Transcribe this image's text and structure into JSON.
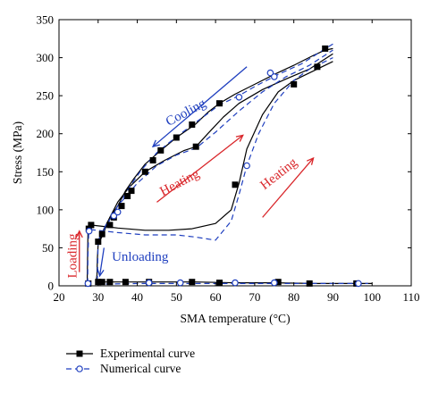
{
  "chart_data": {
    "type": "line",
    "title": "",
    "xlabel": "SMA temperature (°C)",
    "ylabel": "Stress (MPa)",
    "xlim": [
      20,
      110
    ],
    "ylim": [
      0,
      350
    ],
    "xticks": [
      20,
      30,
      40,
      50,
      60,
      70,
      80,
      90,
      100,
      110
    ],
    "yticks": [
      0,
      50,
      100,
      150,
      200,
      250,
      300,
      350
    ],
    "grid": false,
    "legend_position": "bottom-left, below plot",
    "series": [
      {
        "name": "Experimental curve",
        "color": "#000000",
        "line_style": "solid",
        "marker": "filled-square",
        "segments": [
          {
            "phase": "loading",
            "points": [
              [
                27.2,
                3
              ],
              [
                27.3,
                40
              ],
              [
                27.4,
                70
              ],
              [
                27.6,
                80
              ],
              [
                28,
                80
              ]
            ]
          },
          {
            "phase": "heating",
            "points": [
              [
                28,
                80
              ],
              [
                35,
                76
              ],
              [
                42,
                73
              ],
              [
                48,
                73
              ],
              [
                54,
                75
              ],
              [
                60,
                82
              ],
              [
                64,
                100
              ],
              [
                66,
                135
              ],
              [
                68,
                180
              ],
              [
                72,
                225
              ],
              [
                76,
                255
              ],
              [
                80,
                270
              ],
              [
                84,
                280
              ],
              [
                88,
                290
              ],
              [
                90,
                295
              ]
            ]
          },
          {
            "phase": "cooling",
            "points": [
              [
                90,
                312
              ],
              [
                88,
                310
              ],
              [
                85,
                303
              ],
              [
                80,
                290
              ],
              [
                75,
                278
              ],
              [
                70,
                265
              ],
              [
                65,
                252
              ],
              [
                61,
                240
              ],
              [
                58,
                228
              ],
              [
                55,
                213
              ],
              [
                50,
                195
              ],
              [
                46,
                178
              ],
              [
                42,
                160
              ],
              [
                39,
                140
              ],
              [
                37,
                125
              ],
              [
                35,
                105
              ],
              [
                33,
                90
              ],
              [
                31.5,
                75
              ],
              [
                30.5,
                62
              ],
              [
                30,
                55
              ]
            ]
          },
          {
            "phase": "heating",
            "points": [
              [
                30,
                55
              ],
              [
                31,
                65
              ],
              [
                33,
                90
              ],
              [
                35,
                110
              ],
              [
                38,
                130
              ],
              [
                42,
                150
              ],
              [
                47,
                165
              ],
              [
                52,
                178
              ],
              [
                55,
                183
              ],
              [
                58,
                200
              ],
              [
                62,
                222
              ],
              [
                66,
                240
              ],
              [
                72,
                258
              ],
              [
                78,
                272
              ],
              [
                84,
                285
              ],
              [
                90,
                305
              ]
            ]
          },
          {
            "phase": "unloading",
            "points": [
              [
                30,
                55
              ],
              [
                29.8,
                35
              ],
              [
                29.7,
                15
              ],
              [
                29.5,
                5
              ]
            ]
          },
          {
            "phase": "cooling",
            "points": [
              [
                29.5,
                5
              ],
              [
                35,
                5
              ],
              [
                45,
                5
              ],
              [
                55,
                5
              ],
              [
                65,
                4
              ],
              [
                75,
                4
              ],
              [
                85,
                3
              ],
              [
                95,
                3
              ],
              [
                100,
                3
              ]
            ]
          }
        ],
        "markers": [
          [
            27.5,
            3
          ],
          [
            27.6,
            75
          ],
          [
            28.2,
            80
          ],
          [
            30,
            58
          ],
          [
            31,
            68
          ],
          [
            33,
            80
          ],
          [
            34,
            90
          ],
          [
            36,
            105
          ],
          [
            37.5,
            118
          ],
          [
            38.5,
            125
          ],
          [
            42,
            150
          ],
          [
            44,
            165
          ],
          [
            46,
            178
          ],
          [
            50,
            195
          ],
          [
            54,
            212
          ],
          [
            61,
            240
          ],
          [
            55,
            183
          ],
          [
            65,
            133
          ],
          [
            80,
            265
          ],
          [
            86,
            288
          ],
          [
            88,
            312
          ],
          [
            30,
            5
          ],
          [
            31,
            5
          ],
          [
            33,
            5
          ],
          [
            37,
            5
          ],
          [
            43,
            5
          ],
          [
            54,
            5
          ],
          [
            61,
            4
          ],
          [
            76,
            5
          ],
          [
            84,
            3
          ],
          [
            96,
            3
          ]
        ]
      },
      {
        "name": "Numerical curve",
        "color": "#1f3fbf",
        "line_style": "dashed",
        "marker": "open-circle",
        "segments": [
          {
            "phase": "loading",
            "points": [
              [
                27.3,
                3
              ],
              [
                27.4,
                40
              ],
              [
                27.6,
                72
              ],
              [
                28,
                74
              ]
            ]
          },
          {
            "phase": "heating",
            "points": [
              [
                28,
                74
              ],
              [
                35,
                70
              ],
              [
                42,
                67
              ],
              [
                50,
                67
              ],
              [
                55,
                64
              ],
              [
                60,
                60
              ],
              [
                64,
                85
              ],
              [
                66,
                120
              ],
              [
                68,
                158
              ],
              [
                71,
                200
              ],
              [
                75,
                240
              ],
              [
                80,
                270
              ],
              [
                84,
                285
              ],
              [
                88,
                295
              ],
              [
                90,
                300
              ]
            ]
          },
          {
            "phase": "cooling",
            "points": [
              [
                90,
                318
              ],
              [
                86,
                305
              ],
              [
                82,
                292
              ],
              [
                76,
                278
              ],
              [
                70,
                262
              ],
              [
                66,
                250
              ],
              [
                61,
                238
              ],
              [
                55,
                215
              ],
              [
                50,
                196
              ],
              [
                45,
                175
              ],
              [
                41,
                152
              ],
              [
                38,
                130
              ],
              [
                36,
                112
              ],
              [
                34,
                95
              ],
              [
                32,
                80
              ],
              [
                30.5,
                66
              ],
              [
                30,
                60
              ]
            ]
          },
          {
            "phase": "heating",
            "points": [
              [
                30,
                60
              ],
              [
                32,
                78
              ],
              [
                35,
                105
              ],
              [
                40,
                135
              ],
              [
                45,
                158
              ],
              [
                50,
                172
              ],
              [
                55,
                181
              ],
              [
                60,
                202
              ],
              [
                66,
                230
              ],
              [
                72,
                255
              ],
              [
                78,
                275
              ],
              [
                84,
                290
              ],
              [
                90,
                310
              ]
            ]
          },
          {
            "phase": "unloading",
            "points": [
              [
                30,
                60
              ],
              [
                29.9,
                30
              ],
              [
                29.8,
                10
              ],
              [
                29.7,
                2
              ]
            ]
          },
          {
            "phase": "cooling",
            "points": [
              [
                29.7,
                2
              ],
              [
                40,
                3
              ],
              [
                50,
                3
              ],
              [
                60,
                3
              ],
              [
                70,
                3
              ],
              [
                80,
                3
              ],
              [
                90,
                3
              ],
              [
                99,
                3
              ]
            ]
          }
        ],
        "markers": [
          [
            27.4,
            3
          ],
          [
            27.7,
            72
          ],
          [
            34,
            92
          ],
          [
            35,
            97
          ],
          [
            66,
            248
          ],
          [
            68,
            158
          ],
          [
            74,
            280
          ],
          [
            75,
            275
          ],
          [
            96.5,
            3
          ],
          [
            75,
            4
          ],
          [
            65,
            4
          ],
          [
            51,
            4
          ],
          [
            43,
            4
          ]
        ]
      }
    ],
    "annotations": [
      {
        "text": "Loading",
        "color": "#d9262a",
        "at": [
          24.5,
          10
        ],
        "rotation": -90
      },
      {
        "text": "Unloading",
        "color": "#1f3fbf",
        "at": [
          33.5,
          33
        ]
      },
      {
        "text": "Cooling",
        "color": "#1f3fbf",
        "at": [
          48,
          210
        ],
        "rotation": -28
      },
      {
        "text": "Heating",
        "color": "#d9262a",
        "at": [
          46.5,
          118
        ],
        "rotation": -28
      },
      {
        "text": "Heating",
        "color": "#d9262a",
        "at": [
          72.5,
          126
        ],
        "rotation": -38
      }
    ],
    "arrows": [
      {
        "phase": "cooling",
        "color": "#1f3fbf",
        "from": [
          68,
          288
        ],
        "to": [
          44,
          183
        ]
      },
      {
        "phase": "heating",
        "color": "#d9262a",
        "from": [
          45,
          110
        ],
        "to": [
          67,
          198
        ]
      },
      {
        "phase": "heating",
        "color": "#d9262a",
        "from": [
          72,
          90
        ],
        "to": [
          85,
          168
        ]
      },
      {
        "phase": "loading",
        "color": "#d9262a",
        "from": [
          25.2,
          18
        ],
        "to": [
          25.2,
          72
        ]
      },
      {
        "phase": "unloading",
        "color": "#1f3fbf",
        "from": [
          31.5,
          50
        ],
        "to": [
          30.4,
          13
        ]
      }
    ]
  }
}
